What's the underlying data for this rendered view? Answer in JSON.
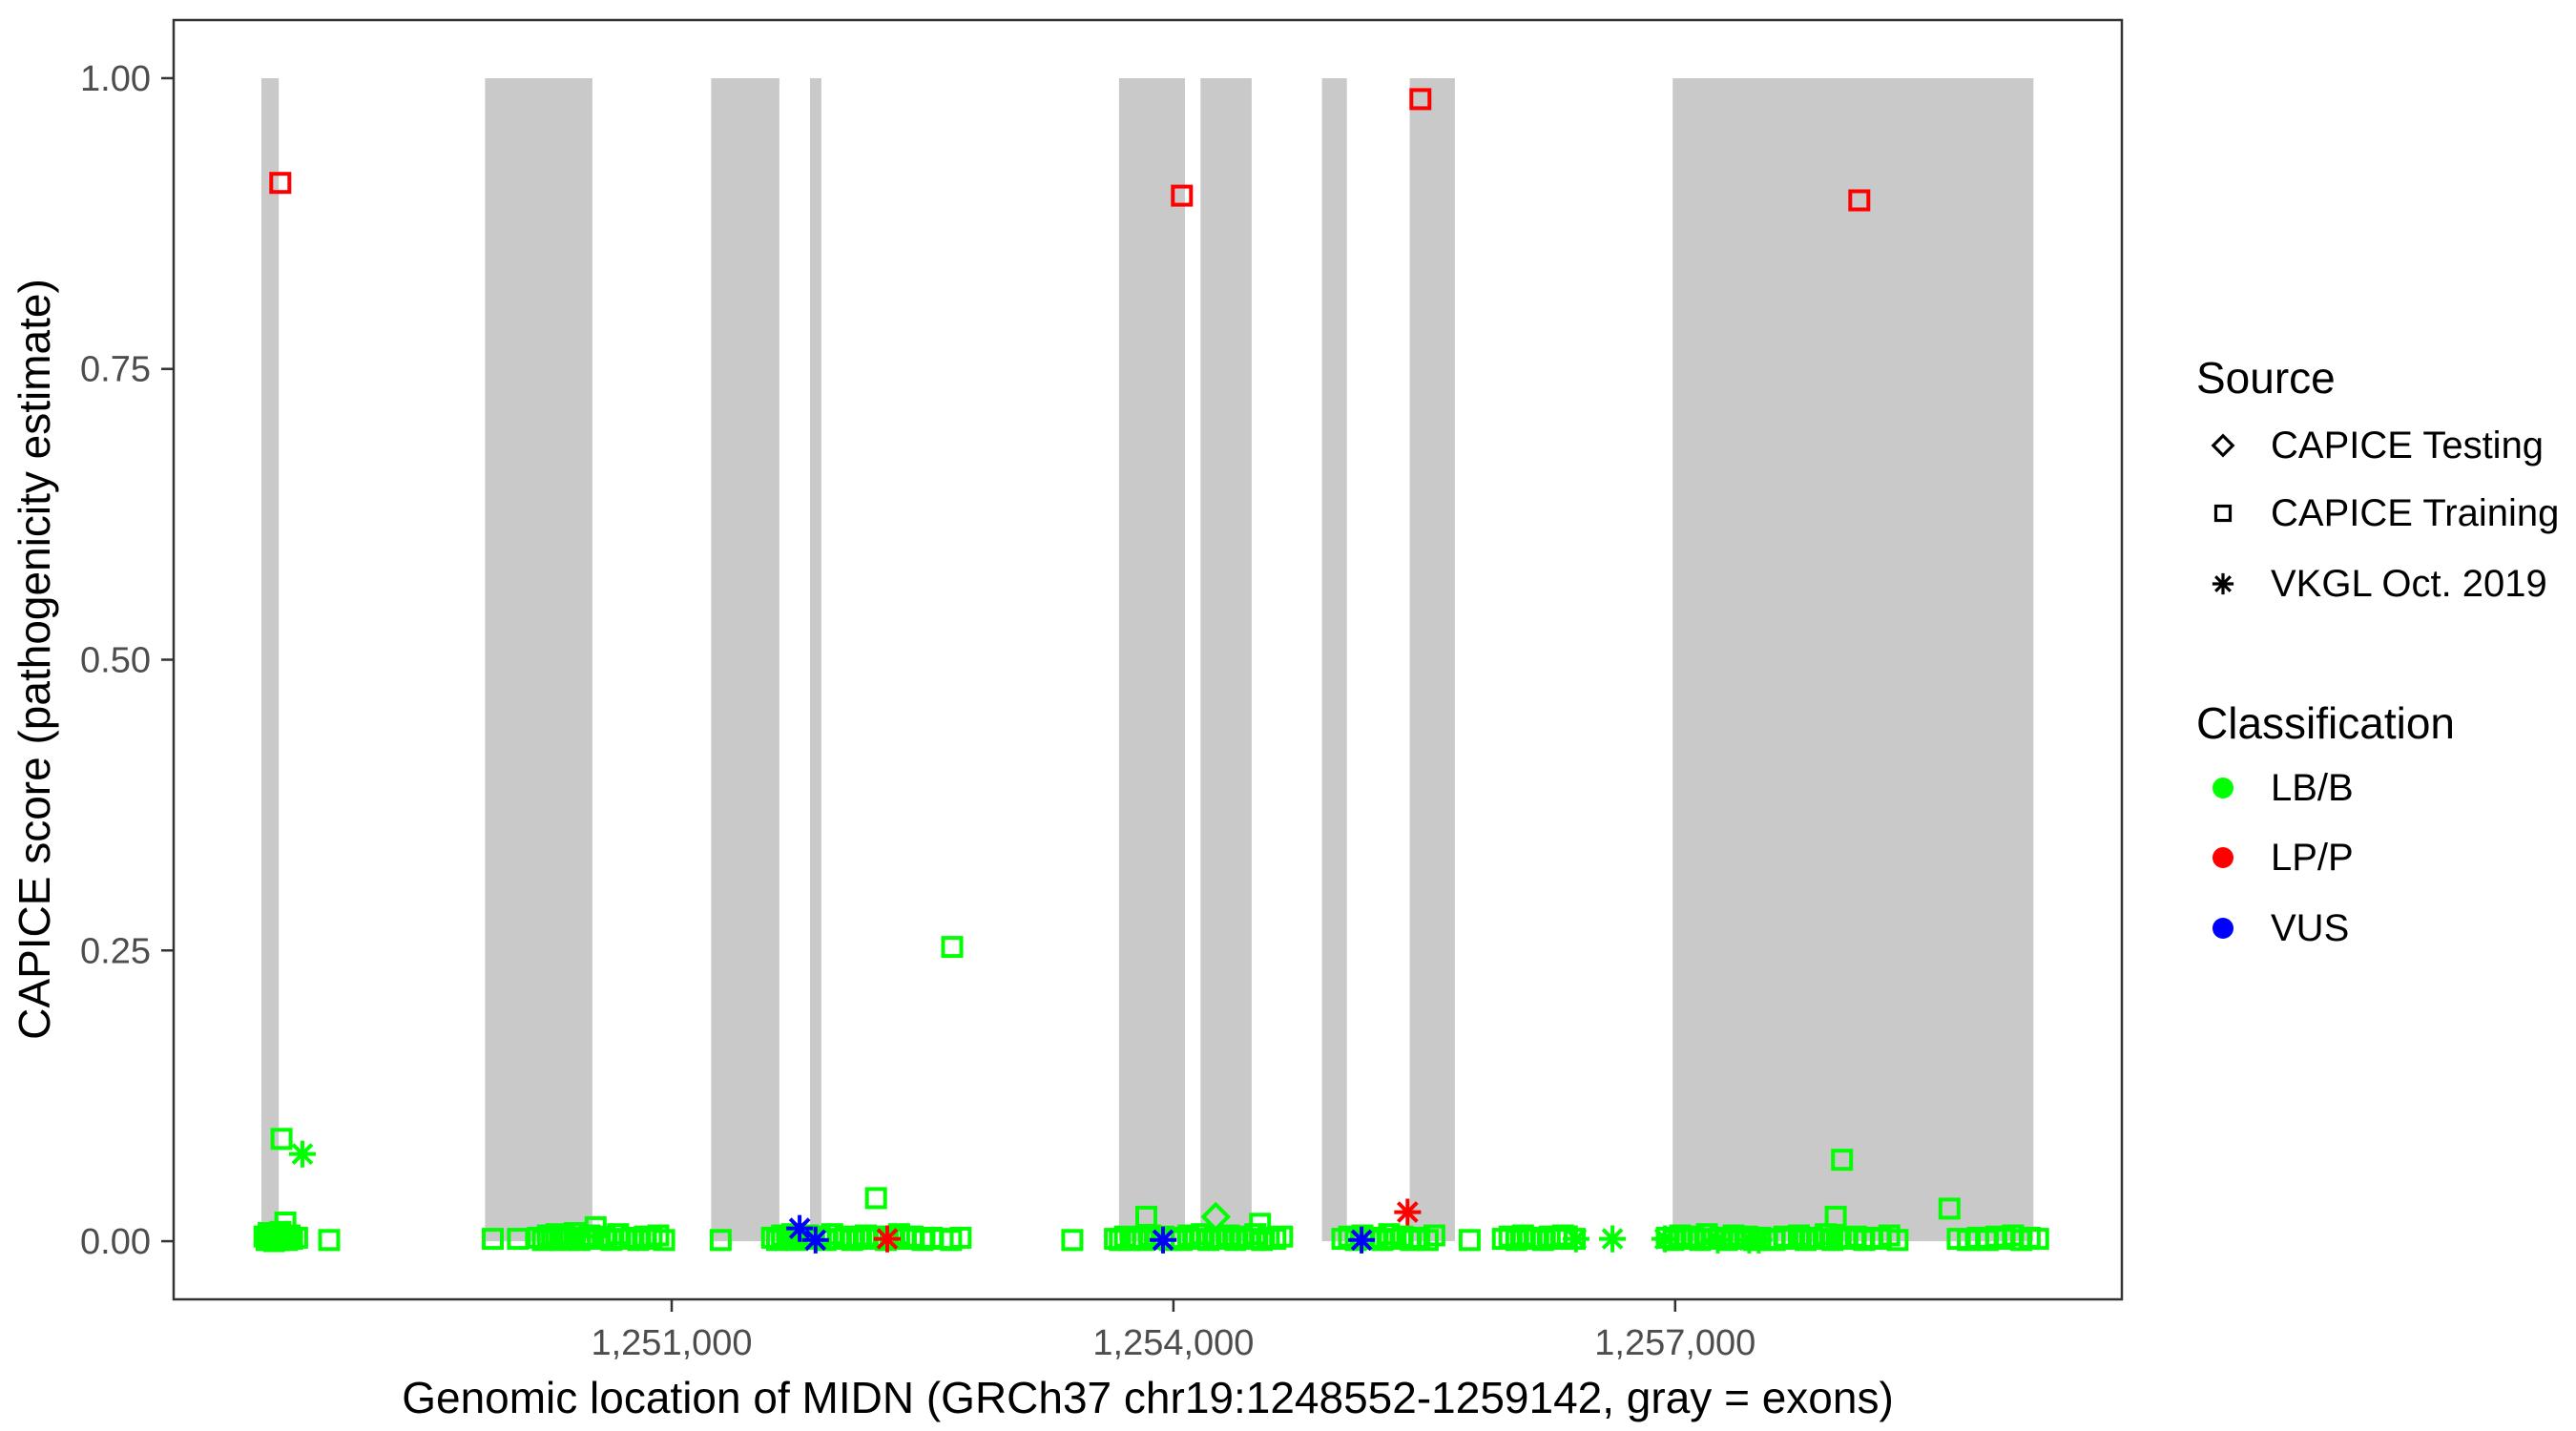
{
  "chart_data": {
    "type": "scatter",
    "title": "",
    "xlabel": "Genomic location of MIDN (GRCh37 chr19:1248552-1259142, gray = exons)",
    "ylabel": "CAPICE score (pathogenicity estimate)",
    "x_range": [
      1248022,
      1259671
    ],
    "y_range": [
      -0.05,
      1.05
    ],
    "grid": false,
    "legend_position": "right",
    "x_ticks": [
      {
        "value": 1251000,
        "label": "1,251,000"
      },
      {
        "value": 1254000,
        "label": "1,254,000"
      },
      {
        "value": 1257000,
        "label": "1,257,000"
      }
    ],
    "y_ticks": [
      {
        "value": 0.0,
        "label": "0.00"
      },
      {
        "value": 0.25,
        "label": "0.25"
      },
      {
        "value": 0.5,
        "label": "0.50"
      },
      {
        "value": 0.75,
        "label": "0.75"
      },
      {
        "value": 1.0,
        "label": "1.00"
      }
    ],
    "exons": [
      [
        1248547,
        1248651
      ],
      [
        1249884,
        1250526
      ],
      [
        1251236,
        1251644
      ],
      [
        1251827,
        1251895
      ],
      [
        1253675,
        1254069
      ],
      [
        1254162,
        1254468
      ],
      [
        1254888,
        1255037
      ],
      [
        1255413,
        1255683
      ],
      [
        1256985,
        1259142
      ]
    ],
    "series": [
      {
        "name": "CAPICE Testing",
        "shape": "diamond",
        "points": [
          [
            1254253,
            0.021,
            "LB/B"
          ]
        ]
      },
      {
        "name": "CAPICE Training",
        "shape": "square",
        "points": [
          [
            1248660,
            0.91,
            "LP/P"
          ],
          [
            1254051,
            0.899,
            "LP/P"
          ],
          [
            1255477,
            0.982,
            "LP/P"
          ],
          [
            1258101,
            0.895,
            "LP/P"
          ],
          [
            1248667,
            0.088,
            "LB/B"
          ],
          [
            1248690,
            0.016,
            "LB/B"
          ],
          [
            1250545,
            0.012,
            "LB/B"
          ],
          [
            1252222,
            0.037,
            "LB/B"
          ],
          [
            1252677,
            0.253,
            "LB/B"
          ],
          [
            1253838,
            0.021,
            "LB/B"
          ],
          [
            1254518,
            0.015,
            "LB/B"
          ],
          [
            1257960,
            0.021,
            "LB/B"
          ],
          [
            1257998,
            0.07,
            "LB/B"
          ],
          [
            1258640,
            0.028,
            "LB/B"
          ],
          [
            1248565,
            0.004,
            "LB/B"
          ],
          [
            1248578,
            0.001,
            "LB/B"
          ],
          [
            1248590,
            0.007,
            "LB/B"
          ],
          [
            1248600,
            0.002,
            "LB/B"
          ],
          [
            1248612,
            0.005,
            "LB/B"
          ],
          [
            1248622,
            0.0,
            "LB/B"
          ],
          [
            1248633,
            0.003,
            "LB/B"
          ],
          [
            1248645,
            0.006,
            "LB/B"
          ],
          [
            1248652,
            0.001,
            "LB/B"
          ],
          [
            1248660,
            0.008,
            "LB/B"
          ],
          [
            1248672,
            0.002,
            "LB/B"
          ],
          [
            1248685,
            0.004,
            "LB/B"
          ],
          [
            1248700,
            0.001,
            "LB/B"
          ],
          [
            1248715,
            0.005,
            "LB/B"
          ],
          [
            1248730,
            0.002,
            "LB/B"
          ],
          [
            1248760,
            0.003,
            "LB/B"
          ],
          [
            1248952,
            0.001,
            "LB/B"
          ],
          [
            1249930,
            0.002,
            "LB/B"
          ],
          [
            1250081,
            0.002,
            "LB/B"
          ],
          [
            1250200,
            0.003,
            "LB/B"
          ],
          [
            1250230,
            0.001,
            "LB/B"
          ],
          [
            1250260,
            0.005,
            "LB/B"
          ],
          [
            1250285,
            0.002,
            "LB/B"
          ],
          [
            1250310,
            0.006,
            "LB/B"
          ],
          [
            1250335,
            0.001,
            "LB/B"
          ],
          [
            1250360,
            0.004,
            "LB/B"
          ],
          [
            1250390,
            0.002,
            "LB/B"
          ],
          [
            1250420,
            0.007,
            "LB/B"
          ],
          [
            1250450,
            0.001,
            "LB/B"
          ],
          [
            1250480,
            0.003,
            "LB/B"
          ],
          [
            1250510,
            0.005,
            "LB/B"
          ],
          [
            1250560,
            0.002,
            "LB/B"
          ],
          [
            1250600,
            0.004,
            "LB/B"
          ],
          [
            1250640,
            0.001,
            "LB/B"
          ],
          [
            1250680,
            0.006,
            "LB/B"
          ],
          [
            1250720,
            0.002,
            "LB/B"
          ],
          [
            1250760,
            0.003,
            "LB/B"
          ],
          [
            1250800,
            0.001,
            "LB/B"
          ],
          [
            1250840,
            0.004,
            "LB/B"
          ],
          [
            1250880,
            0.002,
            "LB/B"
          ],
          [
            1250920,
            0.005,
            "LB/B"
          ],
          [
            1250955,
            0.001,
            "LB/B"
          ],
          [
            1251293,
            0.001,
            "LB/B"
          ],
          [
            1251600,
            0.003,
            "LB/B"
          ],
          [
            1251630,
            0.001,
            "LB/B"
          ],
          [
            1251660,
            0.005,
            "LB/B"
          ],
          [
            1251690,
            0.002,
            "LB/B"
          ],
          [
            1251720,
            0.006,
            "LB/B"
          ],
          [
            1251750,
            0.001,
            "LB/B"
          ],
          [
            1251780,
            0.003,
            "LB/B"
          ],
          [
            1251815,
            0.005,
            "LB/B"
          ],
          [
            1251850,
            0.002,
            "LB/B"
          ],
          [
            1251885,
            0.004,
            "LB/B"
          ],
          [
            1251920,
            0.001,
            "LB/B"
          ],
          [
            1251960,
            0.006,
            "LB/B"
          ],
          [
            1252000,
            0.002,
            "LB/B"
          ],
          [
            1252040,
            0.004,
            "LB/B"
          ],
          [
            1252080,
            0.001,
            "LB/B"
          ],
          [
            1252120,
            0.003,
            "LB/B"
          ],
          [
            1252160,
            0.005,
            "LB/B"
          ],
          [
            1252200,
            0.002,
            "LB/B"
          ],
          [
            1252240,
            0.004,
            "LB/B"
          ],
          [
            1252280,
            0.001,
            "LB/B"
          ],
          [
            1252320,
            0.003,
            "LB/B"
          ],
          [
            1252360,
            0.006,
            "LB/B"
          ],
          [
            1252400,
            0.002,
            "LB/B"
          ],
          [
            1252440,
            0.004,
            "LB/B"
          ],
          [
            1252500,
            0.001,
            "LB/B"
          ],
          [
            1252556,
            0.003,
            "LB/B"
          ],
          [
            1252620,
            0.002,
            "LB/B"
          ],
          [
            1252671,
            0.001,
            "LB/B"
          ],
          [
            1252728,
            0.003,
            "LB/B"
          ],
          [
            1253395,
            0.001,
            "LB/B"
          ],
          [
            1253650,
            0.002,
            "LB/B"
          ],
          [
            1253680,
            0.001,
            "LB/B"
          ],
          [
            1253710,
            0.004,
            "LB/B"
          ],
          [
            1253745,
            0.001,
            "LB/B"
          ],
          [
            1253780,
            0.003,
            "LB/B"
          ],
          [
            1253820,
            0.001,
            "LB/B"
          ],
          [
            1253860,
            0.005,
            "LB/B"
          ],
          [
            1253900,
            0.002,
            "LB/B"
          ],
          [
            1253940,
            0.004,
            "LB/B"
          ],
          [
            1253980,
            0.001,
            "LB/B"
          ],
          [
            1254010,
            0.003,
            "LB/B"
          ],
          [
            1254050,
            0.001,
            "LB/B"
          ],
          [
            1254090,
            0.005,
            "LB/B"
          ],
          [
            1254130,
            0.002,
            "LB/B"
          ],
          [
            1254170,
            0.006,
            "LB/B"
          ],
          [
            1254210,
            0.001,
            "LB/B"
          ],
          [
            1254250,
            0.003,
            "LB/B"
          ],
          [
            1254290,
            0.002,
            "LB/B"
          ],
          [
            1254330,
            0.005,
            "LB/B"
          ],
          [
            1254370,
            0.001,
            "LB/B"
          ],
          [
            1254410,
            0.004,
            "LB/B"
          ],
          [
            1254450,
            0.002,
            "LB/B"
          ],
          [
            1254490,
            0.006,
            "LB/B"
          ],
          [
            1254530,
            0.001,
            "LB/B"
          ],
          [
            1254570,
            0.003,
            "LB/B"
          ],
          [
            1254610,
            0.002,
            "LB/B"
          ],
          [
            1254650,
            0.004,
            "LB/B"
          ],
          [
            1255010,
            0.002,
            "LB/B"
          ],
          [
            1255050,
            0.004,
            "LB/B"
          ],
          [
            1255090,
            0.001,
            "LB/B"
          ],
          [
            1255130,
            0.005,
            "LB/B"
          ],
          [
            1255170,
            0.002,
            "LB/B"
          ],
          [
            1255210,
            0.003,
            "LB/B"
          ],
          [
            1255250,
            0.001,
            "LB/B"
          ],
          [
            1255290,
            0.006,
            "LB/B"
          ],
          [
            1255330,
            0.002,
            "LB/B"
          ],
          [
            1255370,
            0.004,
            "LB/B"
          ],
          [
            1255420,
            0.001,
            "LB/B"
          ],
          [
            1255470,
            0.003,
            "LB/B"
          ],
          [
            1255520,
            0.001,
            "LB/B"
          ],
          [
            1255560,
            0.005,
            "LB/B"
          ],
          [
            1255771,
            0.001,
            "LB/B"
          ],
          [
            1255970,
            0.002,
            "LB/B"
          ],
          [
            1256010,
            0.004,
            "LB/B"
          ],
          [
            1256050,
            0.001,
            "LB/B"
          ],
          [
            1256090,
            0.005,
            "LB/B"
          ],
          [
            1256130,
            0.002,
            "LB/B"
          ],
          [
            1256170,
            0.003,
            "LB/B"
          ],
          [
            1256210,
            0.001,
            "LB/B"
          ],
          [
            1256250,
            0.004,
            "LB/B"
          ],
          [
            1256290,
            0.002,
            "LB/B"
          ],
          [
            1256330,
            0.005,
            "LB/B"
          ],
          [
            1256400,
            0.002,
            "LB/B"
          ],
          [
            1256950,
            0.003,
            "LB/B"
          ],
          [
            1256990,
            0.001,
            "LB/B"
          ],
          [
            1257030,
            0.005,
            "LB/B"
          ],
          [
            1257070,
            0.002,
            "LB/B"
          ],
          [
            1257110,
            0.004,
            "LB/B"
          ],
          [
            1257150,
            0.001,
            "LB/B"
          ],
          [
            1257190,
            0.006,
            "LB/B"
          ],
          [
            1257230,
            0.002,
            "LB/B"
          ],
          [
            1257270,
            0.003,
            "LB/B"
          ],
          [
            1257310,
            0.001,
            "LB/B"
          ],
          [
            1257350,
            0.005,
            "LB/B"
          ],
          [
            1257390,
            0.002,
            "LB/B"
          ],
          [
            1257430,
            0.004,
            "LB/B"
          ],
          [
            1257470,
            0.001,
            "LB/B"
          ],
          [
            1257510,
            0.003,
            "LB/B"
          ],
          [
            1257550,
            0.002,
            "LB/B"
          ],
          [
            1257595,
            0.001,
            "LB/B"
          ],
          [
            1257652,
            0.004,
            "LB/B"
          ],
          [
            1257700,
            0.002,
            "LB/B"
          ],
          [
            1257740,
            0.005,
            "LB/B"
          ],
          [
            1257780,
            0.001,
            "LB/B"
          ],
          [
            1257820,
            0.003,
            "LB/B"
          ],
          [
            1257860,
            0.002,
            "LB/B"
          ],
          [
            1257900,
            0.006,
            "LB/B"
          ],
          [
            1257940,
            0.001,
            "LB/B"
          ],
          [
            1257990,
            0.003,
            "LB/B"
          ],
          [
            1258030,
            0.002,
            "LB/B"
          ],
          [
            1258080,
            0.004,
            "LB/B"
          ],
          [
            1258130,
            0.001,
            "LB/B"
          ],
          [
            1258180,
            0.003,
            "LB/B"
          ],
          [
            1258230,
            0.002,
            "LB/B"
          ],
          [
            1258280,
            0.005,
            "LB/B"
          ],
          [
            1258330,
            0.001,
            "LB/B"
          ],
          [
            1258690,
            0.002,
            "LB/B"
          ],
          [
            1258750,
            0.001,
            "LB/B"
          ],
          [
            1258810,
            0.003,
            "LB/B"
          ],
          [
            1258870,
            0.001,
            "LB/B"
          ],
          [
            1258920,
            0.004,
            "LB/B"
          ],
          [
            1258970,
            0.002,
            "LB/B"
          ],
          [
            1259020,
            0.005,
            "LB/B"
          ],
          [
            1259070,
            0.001,
            "LB/B"
          ],
          [
            1259120,
            0.003,
            "LB/B"
          ],
          [
            1259170,
            0.002,
            "LB/B"
          ]
        ]
      },
      {
        "name": "VKGL Oct. 2019",
        "shape": "asterisk",
        "points": [
          [
            1248792,
            0.075,
            "LB/B"
          ],
          [
            1251765,
            0.011,
            "VUS"
          ],
          [
            1251860,
            0.001,
            "VUS"
          ],
          [
            1252289,
            0.002,
            "LP/P"
          ],
          [
            1253938,
            0.001,
            "VUS"
          ],
          [
            1255125,
            0.001,
            "VUS"
          ],
          [
            1255400,
            0.025,
            "LP/P"
          ],
          [
            1256407,
            0.002,
            "LB/B"
          ],
          [
            1256625,
            0.002,
            "LB/B"
          ],
          [
            1256939,
            0.002,
            "LB/B"
          ],
          [
            1257255,
            0.001,
            "LB/B"
          ],
          [
            1257443,
            0.001,
            "LB/B"
          ],
          [
            1257500,
            0.001,
            "LB/B"
          ]
        ]
      }
    ]
  },
  "legend": {
    "source": {
      "title": "Source",
      "items": [
        {
          "label": "CAPICE Testing",
          "shape": "diamond"
        },
        {
          "label": "CAPICE Training",
          "shape": "square"
        },
        {
          "label": "VKGL Oct. 2019",
          "shape": "asterisk"
        }
      ]
    },
    "classification": {
      "title": "Classification",
      "items": [
        {
          "label": "LB/B",
          "class": "LB/B"
        },
        {
          "label": "LP/P",
          "class": "LP/P"
        },
        {
          "label": "VUS",
          "class": "VUS"
        }
      ]
    }
  },
  "colors": {
    "background": "#FFFFFF",
    "exon": "#C9C9C9",
    "classification": {
      "LB/B": "#00FF00",
      "LP/P": "#FF0000",
      "VUS": "#0000FF"
    },
    "axis_text": "#4D4D4D",
    "axis_title": "#000000",
    "panel_border": "#333333",
    "legend_symbol": "#000000"
  }
}
